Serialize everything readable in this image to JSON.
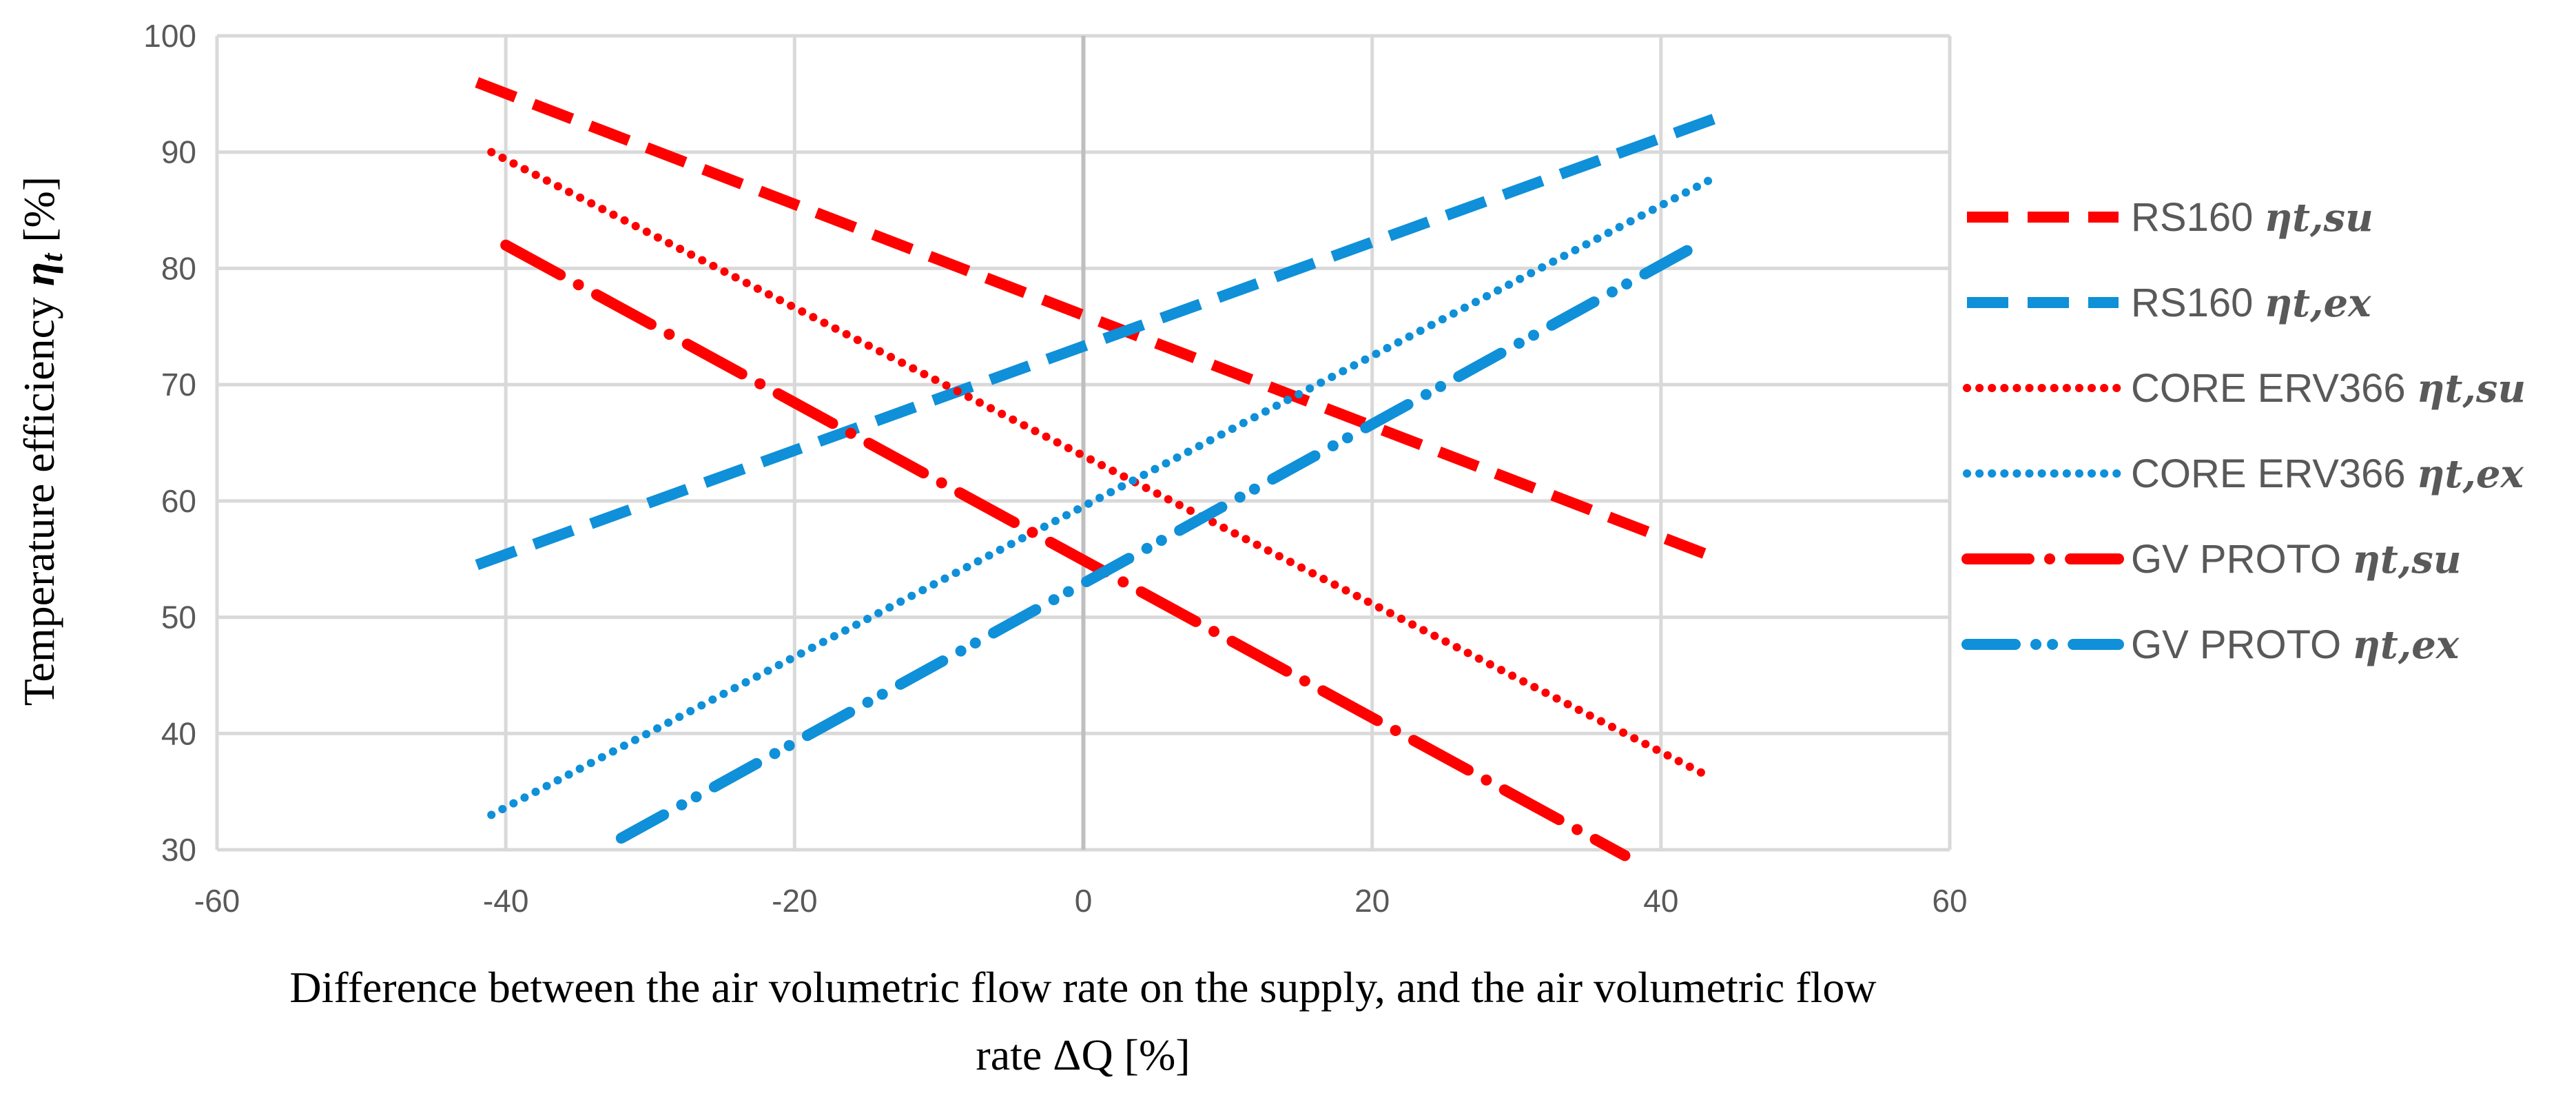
{
  "chart_data": {
    "type": "line",
    "title": "",
    "xlabel_line1": "Difference between the air volumetric flow rate on the supply, and the air volumetric flow",
    "xlabel_line2": "rate ΔQ [%]",
    "ylabel_text": "Temperature efficiency ",
    "ylabel_symbol": "η",
    "ylabel_subscript": "t",
    "ylabel_unit": " [%]",
    "xlim": [
      -60,
      60
    ],
    "ylim": [
      30,
      100
    ],
    "xticks": [
      -60,
      -40,
      -20,
      0,
      20,
      40,
      60
    ],
    "yticks": [
      30,
      40,
      50,
      60,
      70,
      80,
      90,
      100
    ],
    "grid": true,
    "legend_position": "right",
    "series": [
      {
        "name": "RS160",
        "subscript": "ηt,su",
        "color": "#ff0000",
        "dash": "long-dash",
        "x": [
          -42,
          44
        ],
        "y": [
          96,
          55
        ]
      },
      {
        "name": "RS160",
        "subscript": "ηt,ex",
        "color": "#0f90d8",
        "dash": "long-dash",
        "x": [
          -42,
          44
        ],
        "y": [
          54.5,
          93
        ]
      },
      {
        "name": "CORE ERV366",
        "subscript": "ηt,su",
        "color": "#ff0000",
        "dash": "dotted",
        "x": [
          -41,
          43
        ],
        "y": [
          90,
          36.5
        ]
      },
      {
        "name": "CORE ERV366",
        "subscript": "ηt,ex",
        "color": "#0f90d8",
        "dash": "dotted",
        "x": [
          -41,
          44
        ],
        "y": [
          33,
          88
        ]
      },
      {
        "name": "GV PROTO",
        "subscript": "ηt,su",
        "color": "#ff0000",
        "dash": "long-dash-dot",
        "x": [
          -40,
          37.5
        ],
        "y": [
          82,
          29.5
        ]
      },
      {
        "name": "GV PROTO",
        "subscript": "ηt,ex",
        "color": "#0f90d8",
        "dash": "long-dash-dot-dot",
        "x": [
          -32,
          42.5
        ],
        "y": [
          31,
          82
        ]
      }
    ]
  }
}
